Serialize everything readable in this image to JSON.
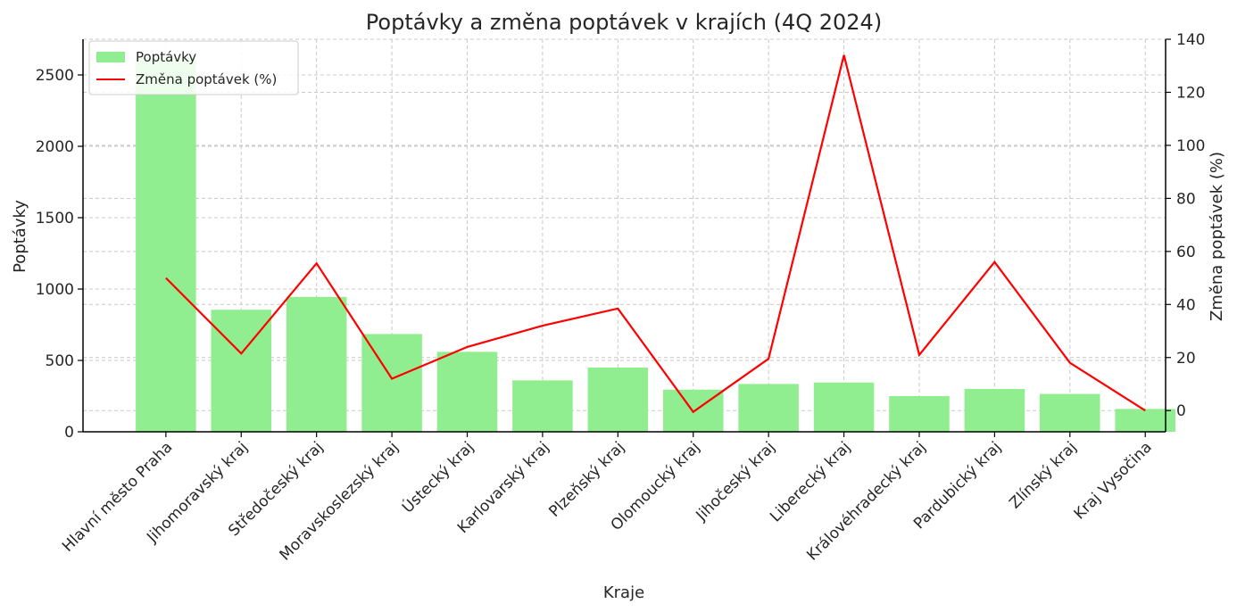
{
  "chart_data": {
    "type": "bar",
    "title": "Poptávky a změna poptávek v krajích (4Q 2024)",
    "xlabel": "Kraje",
    "ylabel": "Poptávky",
    "y2label": "Změna poptávek (%)",
    "categories": [
      "Hlavní město Praha",
      "Jihomoravský kraj",
      "Středočeský kraj",
      "Moravskoslezský kraj",
      "Ústecký kraj",
      "Karlovarský kraj",
      "Plzeňský kraj",
      "Olomoucký kraj",
      "Jihočeský kraj",
      "Liberecký kraj",
      "Královéhradecký kraj",
      "Pardubický kraj",
      "Zlínský kraj",
      "Kraj Vysočina"
    ],
    "series": [
      {
        "name": "Poptávky",
        "type": "bar",
        "axis": "left",
        "color": "#90ee90",
        "values": [
          2620,
          855,
          945,
          685,
          560,
          360,
          450,
          295,
          335,
          345,
          250,
          300,
          265,
          160
        ]
      },
      {
        "name": "Změna poptávek (%)",
        "type": "line",
        "axis": "right",
        "color": "#ff0000",
        "values": [
          50,
          21.5,
          55.5,
          12,
          24,
          32,
          38.5,
          -0.5,
          19.5,
          134,
          21,
          56,
          18,
          0
        ]
      }
    ],
    "ylim": [
      0,
      2750
    ],
    "y2lim": [
      -8,
      140
    ],
    "yticks": [
      0,
      500,
      1000,
      1500,
      2000,
      2500
    ],
    "y2ticks": [
      0,
      20,
      40,
      60,
      80,
      100,
      120,
      140
    ],
    "grid": true,
    "legend_position": "top-left"
  }
}
